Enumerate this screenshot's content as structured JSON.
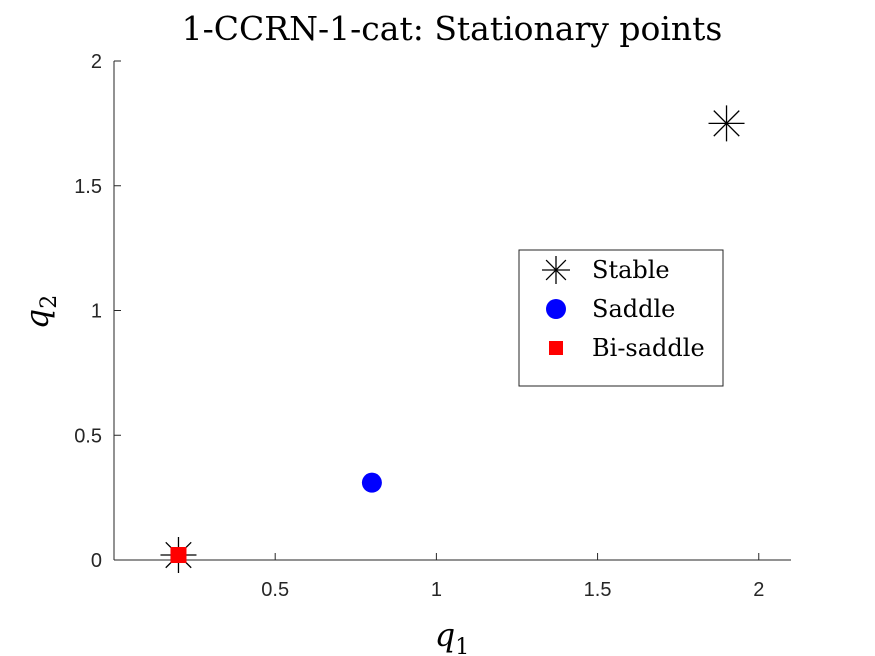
{
  "chart_data": {
    "type": "scatter",
    "title": "1-CCRN-1-cat: Stationary points",
    "xlabel": {
      "base": "q",
      "sub": "1"
    },
    "ylabel": {
      "base": "q",
      "sub": "2"
    },
    "xlim": [
      0,
      2.1
    ],
    "ylim": [
      0,
      2
    ],
    "xticks": [
      0.5,
      1,
      1.5,
      2
    ],
    "xtick_labels": [
      "0.5",
      "1",
      "1.5",
      "2"
    ],
    "yticks": [
      0,
      0.5,
      1,
      1.5,
      2
    ],
    "ytick_labels": [
      "0",
      "0.5",
      "1",
      "1.5",
      "2"
    ],
    "grid": false,
    "legend_position": "right",
    "series": [
      {
        "name": "Stable",
        "marker": "asterisk",
        "color": "#000000",
        "points": [
          [
            1.9,
            1.75
          ],
          [
            0.2,
            0.02
          ]
        ]
      },
      {
        "name": "Saddle",
        "marker": "circle",
        "color": "#0000ff",
        "points": [
          [
            0.8,
            0.31
          ]
        ]
      },
      {
        "name": "Bi-saddle",
        "marker": "square",
        "color": "#ff0000",
        "points": [
          [
            0.2,
            0.02
          ]
        ]
      }
    ]
  }
}
